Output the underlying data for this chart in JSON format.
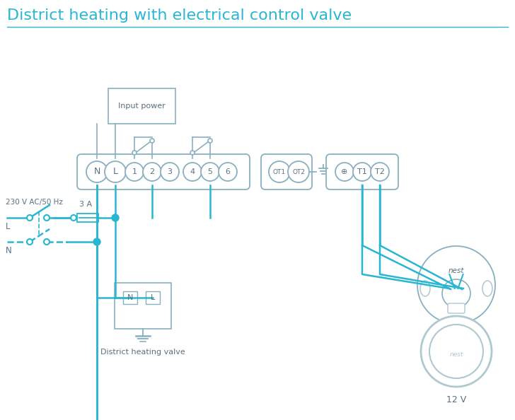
{
  "title": "District heating with electrical control valve",
  "title_color": "#29b6d2",
  "title_fontsize": 16,
  "bg_color": "#ffffff",
  "line_color": "#29b6d2",
  "gray_color": "#8ab0c0",
  "dark_gray": "#5a7080",
  "light_gray": "#b0c8d0",
  "input_power_label": "Input power",
  "valve_label": "District heating valve",
  "twelve_v_label": "12 V",
  "l_label": "L",
  "n_label": "N",
  "voltage_label": "230 V AC/50 Hz",
  "fuse_label": "3 A"
}
